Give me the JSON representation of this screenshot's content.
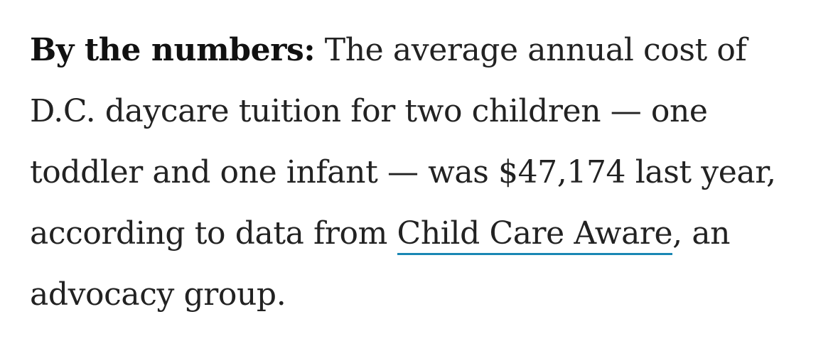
{
  "article": {
    "lead_in": "By the numbers:",
    "text_before_link": " The average annual cost of D.C. daycare tuition for two children — one toddler and one infant — was $47,174 last year, according to data from ",
    "link_text": "Child Care Aware",
    "text_after_link": ", an advocacy group.",
    "link_underline_color": "#1a87b4"
  }
}
